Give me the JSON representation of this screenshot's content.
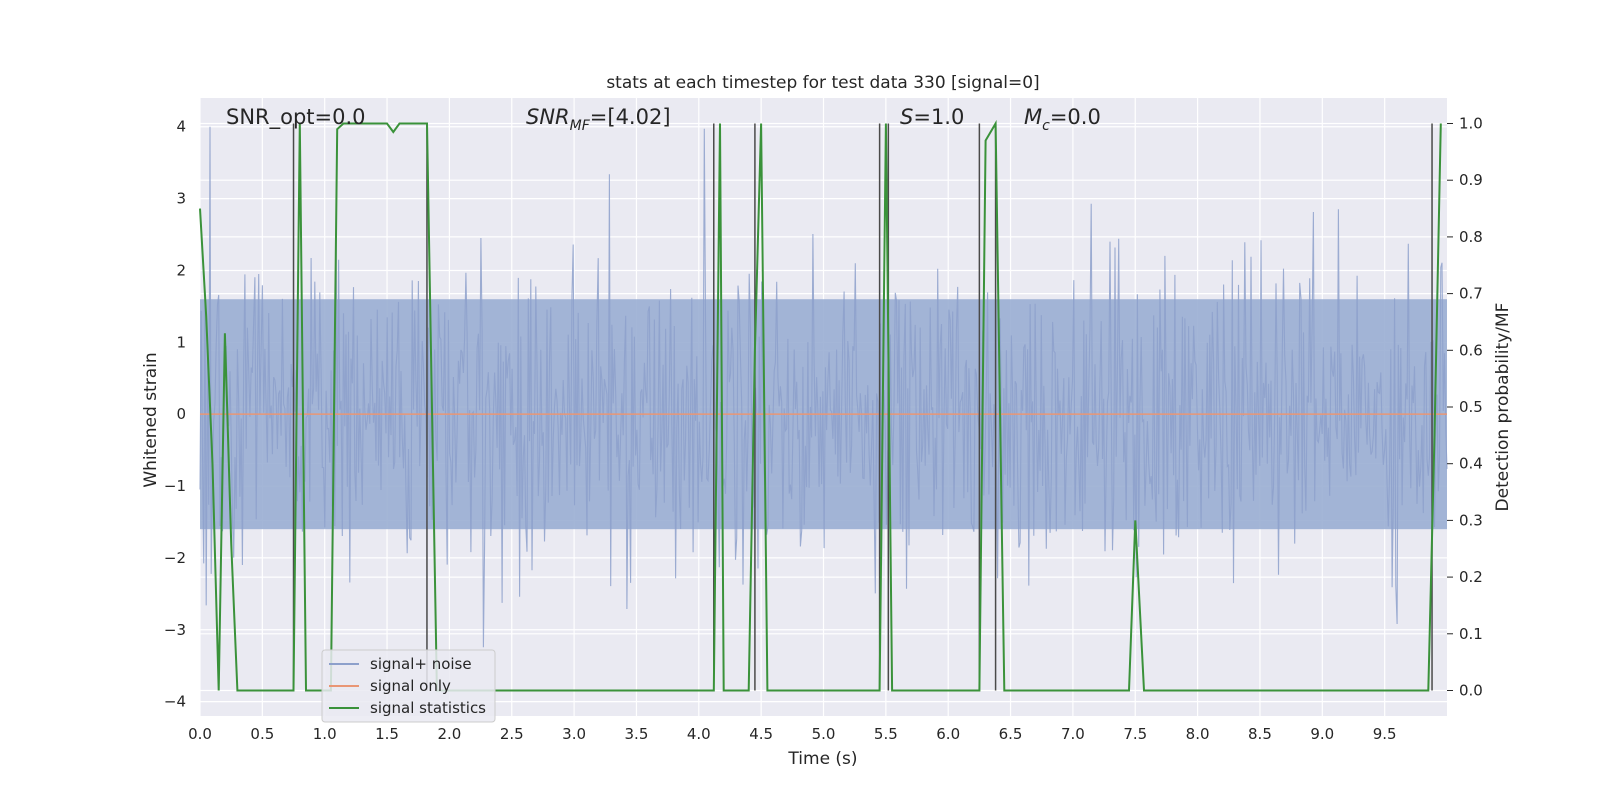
{
  "chart_data": {
    "type": "line",
    "title": "stats at each timestep for test data 330 [signal=0]",
    "xlabel": "Time (s)",
    "ylabel": "Whitened strain",
    "y2label": "Detection probability/MF",
    "xlim": [
      0,
      10
    ],
    "ylim": [
      -4.2,
      4.4
    ],
    "y2lim": [
      -0.045,
      1.045
    ],
    "grid": true,
    "legend_position": "lower-left",
    "x_ticks": [
      "0.0",
      "0.5",
      "1.0",
      "1.5",
      "2.0",
      "2.5",
      "3.0",
      "3.5",
      "4.0",
      "4.5",
      "5.0",
      "5.5",
      "6.0",
      "6.5",
      "7.0",
      "7.5",
      "8.0",
      "8.5",
      "9.0",
      "9.5"
    ],
    "y_ticks": [
      "4",
      "3",
      "2",
      "1",
      "0",
      "−1",
      "−2",
      "−3",
      "−4"
    ],
    "y2_ticks": [
      "1.0",
      "0.9",
      "0.8",
      "0.7",
      "0.6",
      "0.5",
      "0.4",
      "0.3",
      "0.2",
      "0.1",
      "0.0"
    ],
    "annotations": {
      "snr_opt": "SNR_opt=0.0",
      "snr_mf_label": "SNR",
      "snr_mf_sub": "MF",
      "snr_mf_value": "=[4.02]",
      "s_label": "S",
      "s_value": "=1.0",
      "mc_label": "M",
      "mc_sub": "c",
      "mc_value": "=0.0"
    },
    "legend": [
      {
        "label": "signal+ noise",
        "color": "#8da0cb"
      },
      {
        "label": "signal only",
        "color": "#e99675"
      },
      {
        "label": "signal statistics",
        "color": "#3a923a"
      }
    ],
    "noise": {
      "envelope": 1.6,
      "sample_count": 1000,
      "axis": "y",
      "description_free": true
    },
    "signal_only": {
      "x": [
        0,
        10
      ],
      "y": [
        0,
        0
      ]
    },
    "signal_statistics": {
      "axis": "y2",
      "x": [
        0.0,
        0.05,
        0.1,
        0.15,
        0.2,
        0.25,
        0.3,
        0.75,
        0.8,
        0.85,
        1.05,
        1.1,
        1.15,
        1.5,
        1.55,
        1.6,
        1.82,
        1.9,
        4.12,
        4.17,
        4.2,
        4.25,
        4.4,
        4.45,
        4.5,
        4.55,
        5.45,
        5.5,
        5.55,
        5.62,
        6.25,
        6.3,
        6.38,
        6.45,
        7.45,
        7.5,
        7.57,
        9.85,
        9.9,
        9.95
      ],
      "y": [
        0.85,
        0.66,
        0.4,
        0.0,
        0.63,
        0.26,
        0.0,
        0.0,
        1.0,
        0.0,
        0.0,
        0.99,
        1.0,
        1.0,
        0.985,
        1.0,
        1.0,
        0.0,
        0.0,
        1.0,
        0.0,
        0.0,
        0.0,
        0.6,
        1.0,
        0.0,
        0.0,
        1.0,
        0.0,
        0.0,
        0.0,
        0.97,
        1.0,
        0.0,
        0.0,
        0.3,
        0.0,
        0.0,
        0.45,
        1.0
      ]
    },
    "mf_markers": {
      "axis": "y2",
      "x": [
        0.75,
        1.82,
        4.12,
        4.45,
        5.45,
        5.52,
        6.25,
        6.38,
        9.88
      ],
      "y_top": 1.0
    }
  }
}
